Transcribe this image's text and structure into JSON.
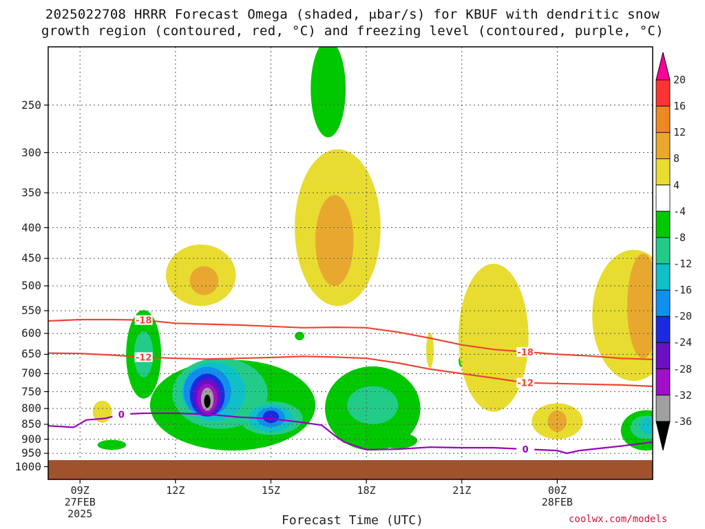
{
  "title": {
    "line1": "2025022708 HRRR Forecast Omega (shaded, μbar/s) for KBUF with dendritic snow",
    "line2": "growth region (contoured, red, °C) and freezing level (contoured, purple, °C)"
  },
  "credit": "coolwx.com/models",
  "chart_data": {
    "type": "contour",
    "xlabel": "Forecast Time (UTC)",
    "ylabel": "",
    "x_unit": "forecast hour (valid 2025-02-27 08Z .. 2025-02-28 03Z)",
    "xlim": [
      8,
      27
    ],
    "ylim_hpa": [
      200,
      1050
    ],
    "y_scale": "log (pressure)",
    "grid": true,
    "x_ticks": [
      {
        "hour": 9,
        "label": "09Z",
        "sub": [
          "27FEB",
          "2025"
        ]
      },
      {
        "hour": 12,
        "label": "12Z",
        "sub": []
      },
      {
        "hour": 15,
        "label": "15Z",
        "sub": []
      },
      {
        "hour": 18,
        "label": "18Z",
        "sub": []
      },
      {
        "hour": 21,
        "label": "21Z",
        "sub": []
      },
      {
        "hour": 24,
        "label": "00Z",
        "sub": [
          "28FEB"
        ]
      }
    ],
    "y_ticks": [
      250,
      300,
      350,
      400,
      450,
      500,
      550,
      600,
      650,
      700,
      750,
      800,
      850,
      900,
      950,
      1000
    ],
    "colorbar": {
      "unit": "μbar/s",
      "levels": [
        20,
        16,
        12,
        8,
        4,
        -4,
        -8,
        -12,
        -16,
        -20,
        -24,
        -28,
        -32,
        -36
      ],
      "colors": [
        "#ff0099",
        "#ff3333",
        "#ee8822",
        "#e8a830",
        "#e8dc30",
        "#ffffff",
        "#00c800",
        "#22cc88",
        "#10c0c8",
        "#1090ee",
        "#1a2ae0",
        "#6a10c0",
        "#a010c8",
        "#a0a0a0",
        "#000000"
      ]
    },
    "omega_regions": [
      {
        "level": -8,
        "color": "#00c800",
        "hour": 16.8,
        "p": 235,
        "dh": 0.55,
        "dp": 48
      },
      {
        "level": -8,
        "color": "#00c800",
        "hour": 11.0,
        "p": 650,
        "dh": 0.55,
        "dp": 120
      },
      {
        "level": -8,
        "color": "#00c800",
        "hour": 13.8,
        "p": 790,
        "dh": 2.6,
        "dp": 150
      },
      {
        "level": -8,
        "color": "#00c800",
        "hour": 18.2,
        "p": 800,
        "dh": 1.5,
        "dp": 140
      },
      {
        "level": -8,
        "color": "#00c800",
        "hour": 10.0,
        "p": 920,
        "dh": 0.45,
        "dp": 18
      },
      {
        "level": -8,
        "color": "#00c800",
        "hour": 19.0,
        "p": 905,
        "dh": 0.6,
        "dp": 28
      },
      {
        "level": -8,
        "color": "#00c800",
        "hour": 26.8,
        "p": 870,
        "dh": 0.8,
        "dp": 70
      },
      {
        "level": -8,
        "color": "#00c800",
        "hour": 21.0,
        "p": 668,
        "dh": 0.1,
        "dp": 15
      },
      {
        "level": -8,
        "color": "#00c800",
        "hour": 15.9,
        "p": 606,
        "dh": 0.15,
        "dp": 10
      },
      {
        "level": -12,
        "color": "#22cc88",
        "hour": 11.0,
        "p": 650,
        "dh": 0.3,
        "dp": 60
      },
      {
        "level": -12,
        "color": "#22cc88",
        "hour": 13.4,
        "p": 755,
        "dh": 1.5,
        "dp": 110
      },
      {
        "level": -12,
        "color": "#22cc88",
        "hour": 18.2,
        "p": 790,
        "dh": 0.8,
        "dp": 60
      },
      {
        "level": -12,
        "color": "#22cc88",
        "hour": 15.0,
        "p": 830,
        "dh": 1.0,
        "dp": 55
      },
      {
        "level": -12,
        "color": "#22cc88",
        "hour": 26.8,
        "p": 860,
        "dh": 0.5,
        "dp": 40
      },
      {
        "level": -16,
        "color": "#10c0c8",
        "hour": 13.2,
        "p": 750,
        "dh": 1.0,
        "dp": 90
      },
      {
        "level": -16,
        "color": "#10c0c8",
        "hour": 15.0,
        "p": 830,
        "dh": 0.7,
        "dp": 45
      },
      {
        "level": -16,
        "color": "#10c0c8",
        "hour": 26.9,
        "p": 855,
        "dh": 0.3,
        "dp": 28
      },
      {
        "level": -20,
        "color": "#1090ee",
        "hour": 13.0,
        "p": 750,
        "dh": 0.75,
        "dp": 75
      },
      {
        "level": -20,
        "color": "#1090ee",
        "hour": 15.0,
        "p": 828,
        "dh": 0.45,
        "dp": 32
      },
      {
        "level": -24,
        "color": "#1a2ae0",
        "hour": 13.0,
        "p": 760,
        "dh": 0.55,
        "dp": 65
      },
      {
        "level": -24,
        "color": "#1a2ae0",
        "hour": 15.0,
        "p": 826,
        "dh": 0.25,
        "dp": 20
      },
      {
        "level": -28,
        "color": "#6a10c0",
        "hour": 13.0,
        "p": 765,
        "dh": 0.42,
        "dp": 55
      },
      {
        "level": -32,
        "color": "#a010c8",
        "hour": 13.0,
        "p": 770,
        "dh": 0.32,
        "dp": 45
      },
      {
        "level": -36,
        "color": "#a0a0a0",
        "hour": 13.0,
        "p": 772,
        "dh": 0.2,
        "dp": 35
      },
      {
        "level": -40,
        "color": "#000000",
        "hour": 13.0,
        "p": 778,
        "dh": 0.1,
        "dp": 20
      },
      {
        "level": 4,
        "color": "#e8dc30",
        "hour": 17.1,
        "p": 400,
        "dh": 1.35,
        "dp": 140
      },
      {
        "level": 4,
        "color": "#e8dc30",
        "hour": 12.8,
        "p": 480,
        "dh": 1.1,
        "dp": 60
      },
      {
        "level": 4,
        "color": "#e8dc30",
        "hour": 22.0,
        "p": 610,
        "dh": 1.1,
        "dp": 200
      },
      {
        "level": 4,
        "color": "#e8dc30",
        "hour": 26.4,
        "p": 560,
        "dh": 1.3,
        "dp": 160
      },
      {
        "level": 4,
        "color": "#e8dc30",
        "hour": 24.0,
        "p": 840,
        "dh": 0.8,
        "dp": 60
      },
      {
        "level": 4,
        "color": "#e8dc30",
        "hour": 9.7,
        "p": 810,
        "dh": 0.3,
        "dp": 35
      },
      {
        "level": 4,
        "color": "#e8dc30",
        "hour": 20.0,
        "p": 640,
        "dh": 0.12,
        "dp": 45
      },
      {
        "level": 8,
        "color": "#e8a830",
        "hour": 17.0,
        "p": 420,
        "dh": 0.6,
        "dp": 80
      },
      {
        "level": 8,
        "color": "#e8a830",
        "hour": 12.9,
        "p": 490,
        "dh": 0.45,
        "dp": 28
      },
      {
        "level": 8,
        "color": "#e8a830",
        "hour": 26.7,
        "p": 540,
        "dh": 0.5,
        "dp": 120
      },
      {
        "level": 8,
        "color": "#e8a830",
        "hour": 24.0,
        "p": 840,
        "dh": 0.3,
        "dp": 35
      }
    ],
    "contours": [
      {
        "name": "-18",
        "color": "#ee4433",
        "points": [
          [
            8,
            572
          ],
          [
            9,
            569
          ],
          [
            10,
            569
          ],
          [
            11,
            570
          ],
          [
            12,
            577
          ],
          [
            13,
            579
          ],
          [
            14,
            581
          ],
          [
            15,
            584
          ],
          [
            16,
            587
          ],
          [
            17,
            586
          ],
          [
            18,
            587
          ],
          [
            19,
            597
          ],
          [
            20,
            611
          ],
          [
            21,
            627
          ],
          [
            22,
            638
          ],
          [
            23,
            644
          ],
          [
            24,
            650
          ],
          [
            25,
            654
          ],
          [
            26,
            660
          ],
          [
            27,
            663
          ]
        ]
      },
      {
        "name": "-12",
        "color": "#ee4433",
        "points": [
          [
            8,
            647
          ],
          [
            9,
            648
          ],
          [
            10,
            652
          ],
          [
            11,
            657
          ],
          [
            12,
            660
          ],
          [
            13,
            662
          ],
          [
            14,
            660
          ],
          [
            15,
            658
          ],
          [
            16,
            655
          ],
          [
            17,
            657
          ],
          [
            18,
            660
          ],
          [
            19,
            672
          ],
          [
            20,
            688
          ],
          [
            21,
            700
          ],
          [
            22,
            712
          ],
          [
            23,
            725
          ],
          [
            24,
            727
          ],
          [
            25,
            729
          ],
          [
            26,
            731
          ],
          [
            27,
            735
          ]
        ]
      },
      {
        "name": "0",
        "color": "#9900bb",
        "points": [
          [
            8,
            855
          ],
          [
            8.8,
            860
          ],
          [
            9.2,
            836
          ],
          [
            9.8,
            831
          ],
          [
            10.3,
            818
          ],
          [
            11,
            815
          ],
          [
            12,
            815
          ],
          [
            13,
            818
          ],
          [
            14,
            827
          ],
          [
            15,
            832
          ],
          [
            16,
            844
          ],
          [
            16.6,
            853
          ],
          [
            17,
            887
          ],
          [
            17.3,
            910
          ],
          [
            18,
            937
          ],
          [
            19,
            935
          ],
          [
            20,
            928
          ],
          [
            21,
            930
          ],
          [
            22,
            930
          ],
          [
            23,
            935
          ],
          [
            24,
            940
          ],
          [
            24.3,
            950
          ],
          [
            24.7,
            940
          ],
          [
            26,
            924
          ],
          [
            27,
            910
          ]
        ]
      }
    ]
  }
}
